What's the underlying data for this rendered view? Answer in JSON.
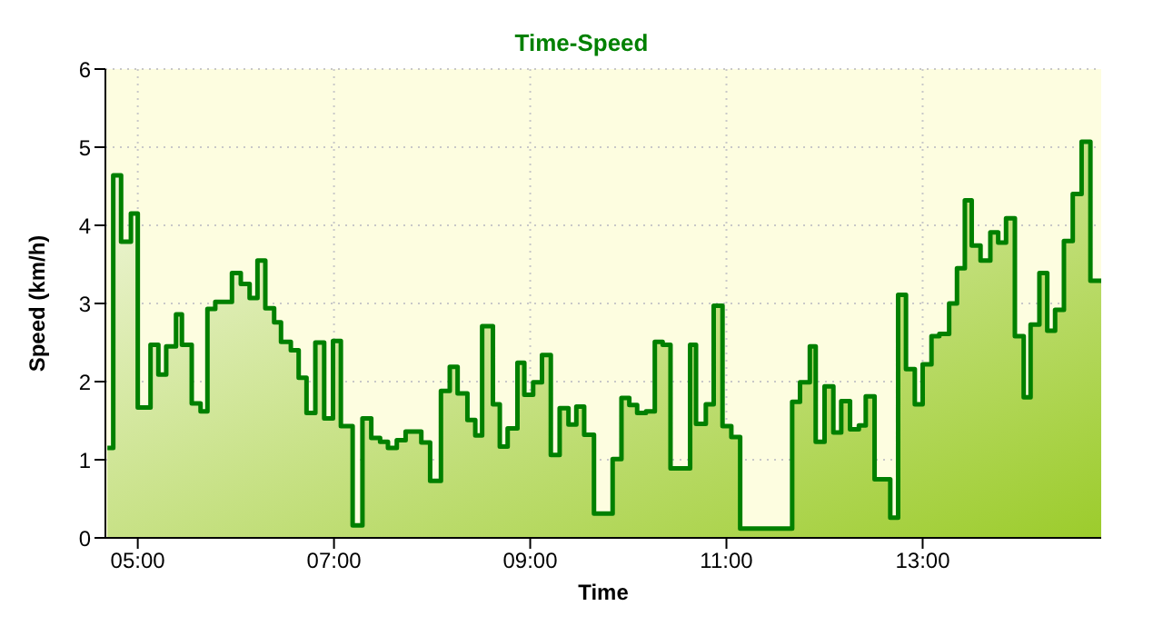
{
  "chart_data": {
    "type": "area",
    "title": "Time-Speed",
    "xlabel": "Time",
    "ylabel": "Speed (km/h)",
    "xlim": [
      4.67,
      14.82
    ],
    "ylim": [
      0,
      6
    ],
    "xticks": [
      {
        "value": 5,
        "label": "05:00"
      },
      {
        "value": 7,
        "label": "07:00"
      },
      {
        "value": 9,
        "label": "09:00"
      },
      {
        "value": 11,
        "label": "11:00"
      },
      {
        "value": 13,
        "label": "13:00"
      }
    ],
    "yticks": [
      0,
      1,
      2,
      3,
      4,
      5,
      6
    ],
    "grid": true,
    "legend": false,
    "marker": "none",
    "line_style": "solid",
    "series": [
      {
        "color": "#008000",
        "x": [
          4.69,
          4.75,
          4.75,
          4.83,
          4.83,
          4.93,
          4.93,
          5.0,
          5.0,
          5.13,
          5.13,
          5.21,
          5.21,
          5.29,
          5.29,
          5.39,
          5.39,
          5.45,
          5.45,
          5.55,
          5.55,
          5.64,
          5.64,
          5.71,
          5.71,
          5.79,
          5.79,
          5.96,
          5.96,
          6.05,
          6.05,
          6.14,
          6.14,
          6.22,
          6.22,
          6.3,
          6.3,
          6.39,
          6.39,
          6.46,
          6.46,
          6.56,
          6.56,
          6.64,
          6.64,
          6.72,
          6.72,
          6.81,
          6.81,
          6.9,
          6.9,
          6.99,
          6.99,
          7.07,
          7.07,
          7.19,
          7.19,
          7.29,
          7.29,
          7.38,
          7.38,
          7.47,
          7.47,
          7.55,
          7.55,
          7.64,
          7.64,
          7.73,
          7.73,
          7.89,
          7.89,
          7.98,
          7.98,
          8.09,
          8.09,
          8.18,
          8.18,
          8.26,
          8.26,
          8.36,
          8.36,
          8.44,
          8.44,
          8.51,
          8.51,
          8.62,
          8.62,
          8.69,
          8.69,
          8.77,
          8.77,
          8.87,
          8.87,
          8.94,
          8.94,
          9.03,
          9.03,
          9.12,
          9.12,
          9.21,
          9.21,
          9.3,
          9.3,
          9.39,
          9.39,
          9.47,
          9.47,
          9.55,
          9.55,
          9.65,
          9.65,
          9.84,
          9.84,
          9.93,
          9.93,
          10.01,
          10.01,
          10.09,
          10.09,
          10.18,
          10.18,
          10.27,
          10.27,
          10.35,
          10.35,
          10.43,
          10.43,
          10.63,
          10.63,
          10.69,
          10.69,
          10.79,
          10.79,
          10.87,
          10.87,
          10.96,
          10.96,
          11.05,
          11.05,
          11.14,
          11.14,
          11.67,
          11.67,
          11.75,
          11.75,
          11.85,
          11.85,
          11.91,
          11.91,
          12.0,
          12.0,
          12.09,
          12.09,
          12.17,
          12.17,
          12.26,
          12.26,
          12.35,
          12.35,
          12.42,
          12.42,
          12.51,
          12.51,
          12.67,
          12.67,
          12.75,
          12.75,
          12.83,
          12.83,
          12.92,
          12.92,
          13.0,
          13.0,
          13.09,
          13.09,
          13.17,
          13.17,
          13.27,
          13.27,
          13.35,
          13.35,
          13.43,
          13.43,
          13.5,
          13.5,
          13.59,
          13.59,
          13.69,
          13.69,
          13.77,
          13.77,
          13.85,
          13.85,
          13.94,
          13.94,
          14.03,
          14.03,
          14.1,
          14.1,
          14.19,
          14.19,
          14.27,
          14.27,
          14.35,
          14.35,
          14.44,
          14.44,
          14.53,
          14.53,
          14.62,
          14.62,
          14.71,
          14.71,
          14.82
        ],
        "values": [
          1.15,
          1.15,
          4.64,
          4.64,
          3.79,
          3.79,
          4.15,
          4.15,
          1.67,
          1.67,
          2.47,
          2.47,
          2.09,
          2.09,
          2.45,
          2.45,
          2.86,
          2.86,
          2.47,
          2.47,
          1.72,
          1.72,
          1.62,
          1.62,
          2.93,
          2.93,
          3.02,
          3.02,
          3.39,
          3.39,
          3.25,
          3.25,
          3.07,
          3.07,
          3.55,
          3.55,
          2.94,
          2.94,
          2.76,
          2.76,
          2.51,
          2.51,
          2.4,
          2.4,
          2.05,
          2.05,
          1.6,
          1.6,
          2.5,
          2.5,
          1.53,
          1.53,
          2.52,
          2.52,
          1.43,
          1.43,
          0.16,
          0.16,
          1.53,
          1.53,
          1.28,
          1.28,
          1.23,
          1.23,
          1.15,
          1.15,
          1.25,
          1.25,
          1.36,
          1.36,
          1.22,
          1.22,
          0.73,
          0.73,
          1.88,
          1.88,
          2.19,
          2.19,
          1.85,
          1.85,
          1.51,
          1.51,
          1.31,
          1.31,
          2.71,
          2.71,
          1.71,
          1.71,
          1.17,
          1.17,
          1.4,
          1.4,
          2.24,
          2.24,
          1.83,
          1.83,
          1.99,
          1.99,
          2.34,
          2.34,
          1.06,
          1.06,
          1.66,
          1.66,
          1.45,
          1.45,
          1.68,
          1.68,
          1.32,
          1.32,
          0.31,
          0.31,
          1.01,
          1.01,
          1.79,
          1.79,
          1.7,
          1.7,
          1.6,
          1.6,
          1.62,
          1.62,
          2.51,
          2.51,
          2.47,
          2.47,
          0.89,
          0.89,
          2.47,
          2.47,
          1.46,
          1.46,
          1.71,
          1.71,
          2.97,
          2.97,
          1.43,
          1.43,
          1.29,
          1.29,
          0.12,
          0.12,
          1.74,
          1.74,
          1.99,
          1.99,
          2.45,
          2.45,
          1.23,
          1.23,
          1.94,
          1.94,
          1.35,
          1.35,
          1.75,
          1.75,
          1.39,
          1.39,
          1.44,
          1.44,
          1.81,
          1.81,
          0.75,
          0.75,
          0.26,
          0.26,
          3.11,
          3.11,
          2.16,
          2.16,
          1.71,
          1.71,
          2.22,
          2.22,
          2.58,
          2.58,
          2.61,
          2.61,
          3.0,
          3.0,
          3.45,
          3.45,
          4.32,
          4.32,
          3.74,
          3.74,
          3.55,
          3.55,
          3.91,
          3.91,
          3.78,
          3.78,
          4.09,
          4.09,
          2.58,
          2.58,
          1.8,
          1.8,
          2.73,
          2.73,
          3.39,
          3.39,
          2.65,
          2.65,
          2.92,
          2.92,
          3.8,
          3.8,
          4.4,
          4.4,
          5.07,
          5.07,
          3.29,
          3.29
        ]
      }
    ]
  }
}
